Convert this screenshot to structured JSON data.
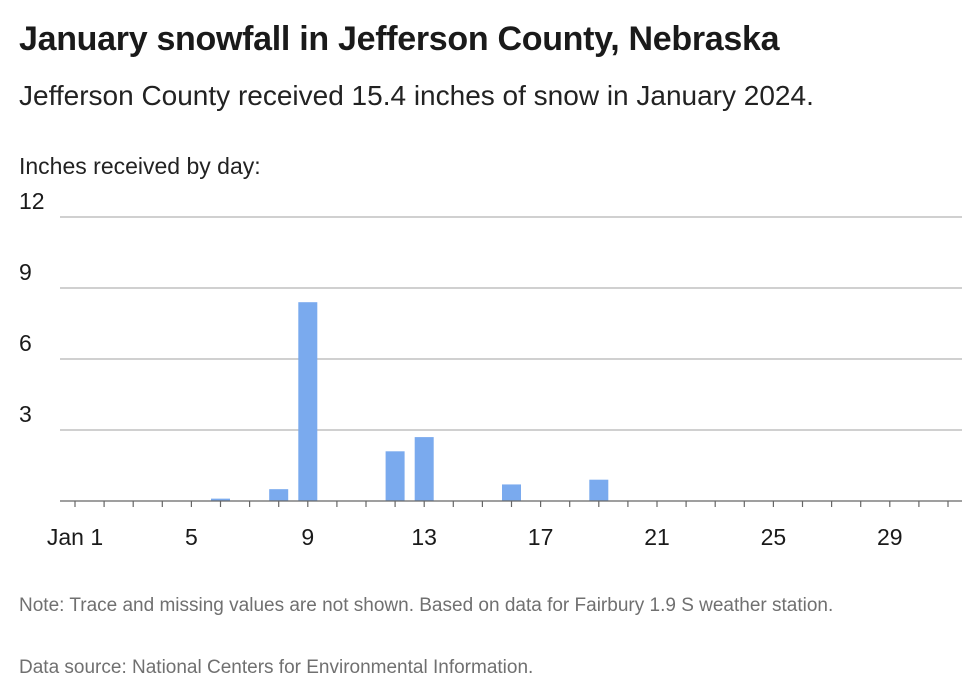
{
  "title": "January snowfall in Jefferson County, Nebraska",
  "subtitle": "Jefferson County received 15.4 inches of snow in January 2024.",
  "footer": {
    "note": "Note: Trace and missing values are not shown. Based on data for Fairbury 1.9 S weather station.",
    "source": "Data source: National Centers for Environmental Information."
  },
  "colors": {
    "bar": "#7aaaee",
    "grid": "#b3b3b3",
    "axis": "#666666"
  },
  "chart_data": {
    "type": "bar",
    "title": "January snowfall in Jefferson County, Nebraska",
    "subtitle": "Jefferson County received 15.4 inches of snow in January 2024.",
    "ylabel": "Inches received by day:",
    "xlabel": "",
    "ylim": [
      0,
      12
    ],
    "y_ticks": [
      3,
      6,
      9,
      12
    ],
    "x_range": [
      1,
      31
    ],
    "x_ticks": [
      {
        "day": 1,
        "label": "Jan 1"
      },
      {
        "day": 5,
        "label": "5"
      },
      {
        "day": 9,
        "label": "9"
      },
      {
        "day": 13,
        "label": "13"
      },
      {
        "day": 17,
        "label": "17"
      },
      {
        "day": 21,
        "label": "21"
      },
      {
        "day": 25,
        "label": "25"
      },
      {
        "day": 29,
        "label": "29"
      }
    ],
    "grid": true,
    "x": [
      6,
      8,
      9,
      12,
      13,
      16,
      19
    ],
    "values": [
      0.1,
      0.5,
      8.4,
      2.1,
      2.7,
      0.7,
      0.9
    ]
  }
}
